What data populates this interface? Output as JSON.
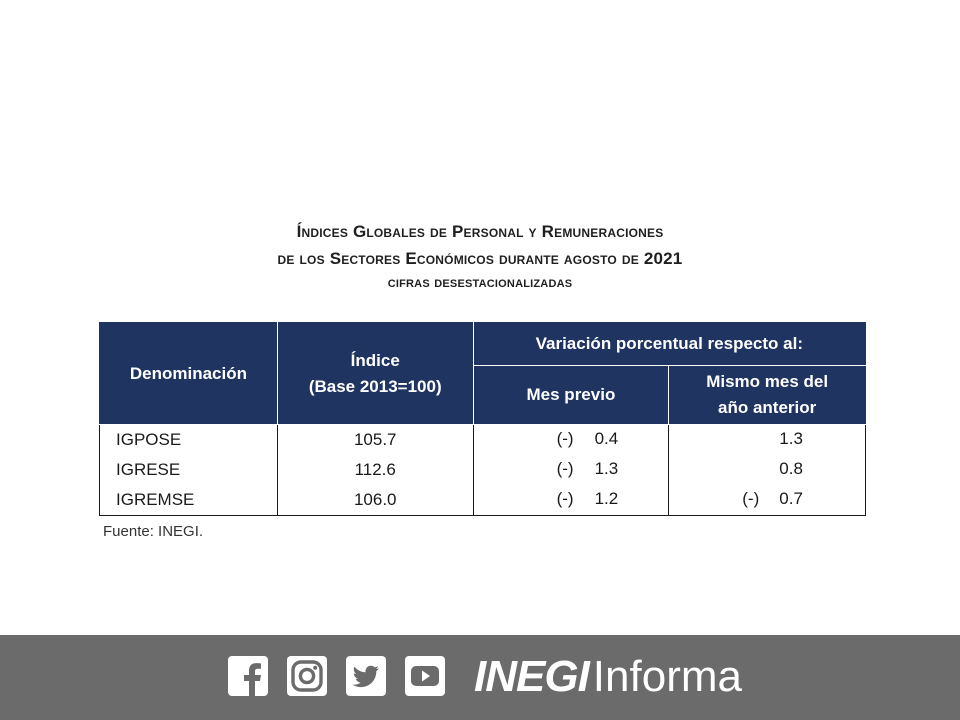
{
  "title": {
    "line1": "Índices Globales de Personal y Remuneraciones",
    "line2": "de los Sectores Económicos durante agosto de 2021",
    "line3": "cifras desestacionalizadas"
  },
  "table": {
    "headers": {
      "denominacion": "Denominación",
      "indice_line1": "Índice",
      "indice_line2": "(Base 2013=100)",
      "variacion": "Variación porcentual respecto al:",
      "mes_previo": "Mes previo",
      "mismo_mes_line1": "Mismo mes del",
      "mismo_mes_line2": "año anterior"
    },
    "rows": [
      {
        "name": "IGPOSE",
        "indice": "105.7",
        "mes_previo_sign": "(-)",
        "mes_previo": "0.4",
        "anual_sign": "",
        "anual": "1.3"
      },
      {
        "name": "IGRESE",
        "indice": "112.6",
        "mes_previo_sign": "(-)",
        "mes_previo": "1.3",
        "anual_sign": "",
        "anual": "0.8"
      },
      {
        "name": "IGREMSE",
        "indice": "106.0",
        "mes_previo_sign": "(-)",
        "mes_previo": "1.2",
        "anual_sign": "(-)",
        "anual": "0.7"
      }
    ]
  },
  "source": "Fuente: INEGI.",
  "footer": {
    "brand_bold": "INEGI",
    "brand_light": "Informa",
    "icons": [
      "facebook-icon",
      "instagram-icon",
      "twitter-icon",
      "youtube-icon"
    ],
    "background": "#6b6b6b"
  },
  "colors": {
    "header_bg": "#1f3461",
    "header_text": "#ffffff"
  }
}
